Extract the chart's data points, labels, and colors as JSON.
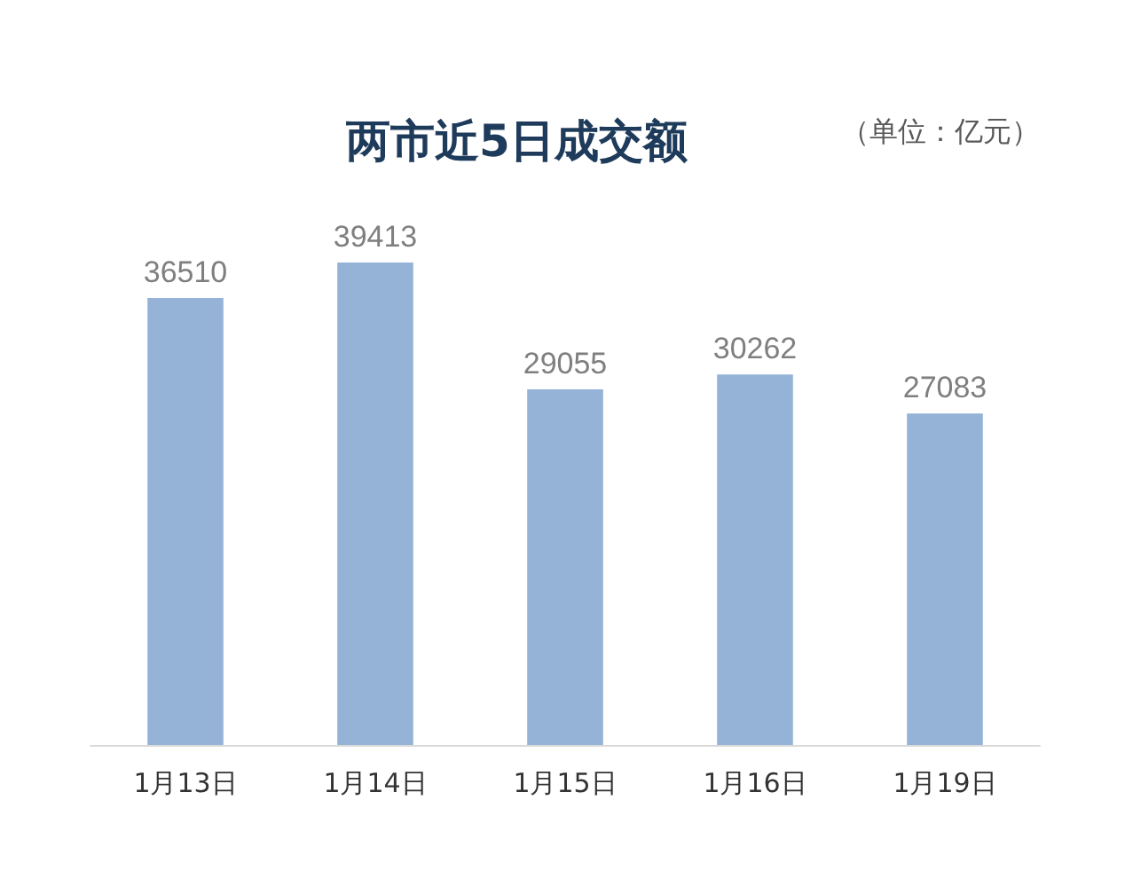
{
  "chart_data": {
    "type": "bar",
    "title": "两市近5日成交额",
    "annotations": [
      "（单位：亿元）"
    ],
    "categories": [
      "1月13日",
      "1月14日",
      "1月15日",
      "1月16日",
      "1月19日"
    ],
    "values": [
      36510,
      39413,
      29055,
      30262,
      27083
    ],
    "color": "#95b3d7",
    "data_labels": true,
    "tick_labels": "x"
  }
}
